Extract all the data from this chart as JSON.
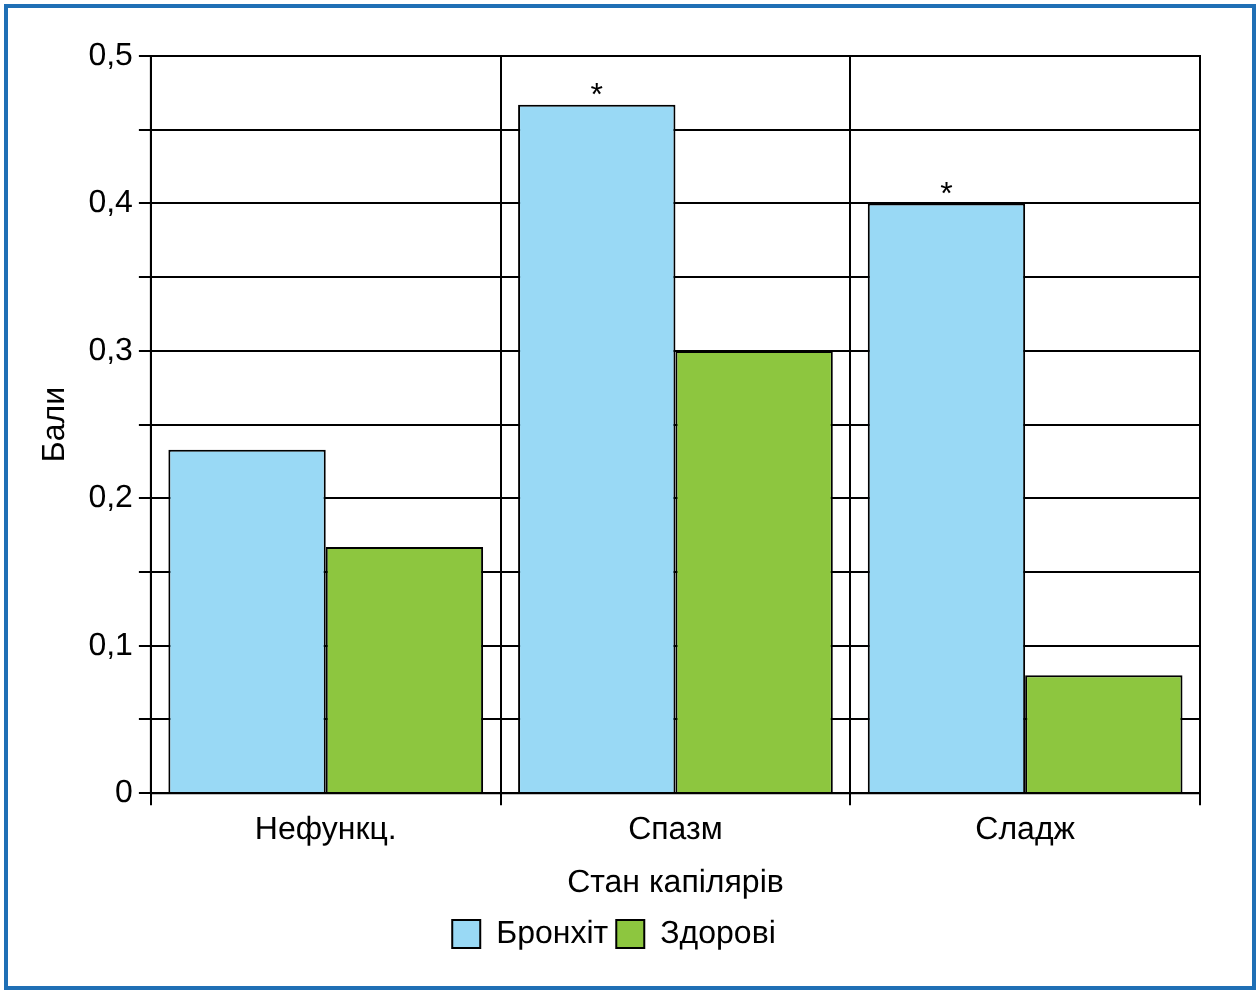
{
  "chart_data": {
    "type": "bar",
    "xlabel": "Стан капілярів",
    "ylabel": "Бали",
    "categories": [
      "Нефункц.",
      "Спазм",
      "Сладж"
    ],
    "series": [
      {
        "name": "Бронхіт",
        "color": "#99d9f5",
        "values": [
          0.233,
          0.467,
          0.4
        ]
      },
      {
        "name": "Здорові",
        "color": "#8dc63f",
        "values": [
          0.167,
          0.3,
          0.08
        ]
      }
    ],
    "ylim": [
      0,
      0.5
    ],
    "yticks": [
      {
        "value": 0,
        "label": "0"
      },
      {
        "value": 0.05,
        "label": null
      },
      {
        "value": 0.1,
        "label": "0,1"
      },
      {
        "value": 0.15,
        "label": null
      },
      {
        "value": 0.2,
        "label": "0,2"
      },
      {
        "value": 0.25,
        "label": null
      },
      {
        "value": 0.3,
        "label": "0,3"
      },
      {
        "value": 0.35,
        "label": null
      },
      {
        "value": 0.4,
        "label": "0,4"
      },
      {
        "value": 0.45,
        "label": null
      },
      {
        "value": 0.5,
        "label": "0,5"
      }
    ],
    "annotations": [
      {
        "text": "*",
        "x": "Спазм",
        "y": 0.467
      },
      {
        "text": "*",
        "x": "Сладж",
        "y": 0.4
      }
    ],
    "grid": true,
    "legend": "bottom"
  }
}
